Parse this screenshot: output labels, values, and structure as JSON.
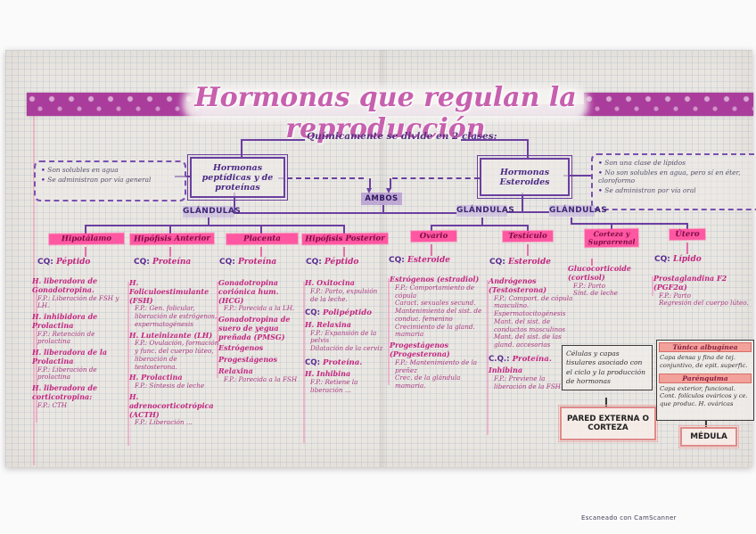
{
  "palette": {
    "ink_purple": "#6b3fa0",
    "ink_pink": "#c2267f",
    "highlight_pink": "#ff57a1",
    "highlight_lavender": "#b9a3e3",
    "tape_magenta": "#aa3d9c"
  },
  "title": "Hormonas que regulan la reproducción",
  "intro": "Químicamente se divide en 2 clases:",
  "class_left": {
    "label": "Hormonas peptídicas y de proteínas",
    "notes": [
      {
        "c": "note",
        "s": "Son solubles en agua"
      },
      {
        "c": "note",
        "s": "Se administran por vía general"
      }
    ]
  },
  "class_right": {
    "label": "Hormonas Esteroides",
    "notes": [
      {
        "c": "note",
        "s": "Son una clase de lípidos"
      },
      {
        "c": "note",
        "s": "No son solubles en agua, pero sí en éter, cloroformo"
      },
      {
        "c": "note",
        "s": "Se administran por vía oral"
      }
    ]
  },
  "ambos": "AMBOS",
  "glandulas": [
    "GLÁNDULAS",
    "GLÁNDULAS",
    "GLÁNDULAS"
  ],
  "columns": [
    {
      "name": "Hipotálamo",
      "cq_label": "CQ:",
      "cq": "Péptido",
      "lines": [
        {
          "c": "h",
          "s": "H. liberadora de Gonadotropina."
        },
        {
          "c": "fp",
          "s": "F.P.: Liberación de FSH y LH."
        },
        {
          "c": "h",
          "s": "H. inhibidora de Prolactina"
        },
        {
          "c": "fp",
          "s": "F.P.: Retención de prolactina"
        },
        {
          "c": "h",
          "s": "H. liberadora de la Prolactina"
        },
        {
          "c": "fp",
          "s": "F.P.: Liberación de prolactina"
        },
        {
          "c": "h",
          "s": "H. liberadora de corticotropina:"
        },
        {
          "c": "fp",
          "s": "F.P.: CTH"
        }
      ]
    },
    {
      "name": "Hipófisis Anterior",
      "cq_label": "CQ:",
      "cq": "Proteína",
      "lines": [
        {
          "c": "h",
          "s": "H. Foliculoestimulante (FSH)"
        },
        {
          "c": "fp",
          "s": "F.P.: Gen. folicular, liberación de estrógenos, espermatogénesis"
        },
        {
          "c": "h",
          "s": "H. Luteinizante (LH)"
        },
        {
          "c": "fp",
          "s": "F.P.: Ovulación, formación y func. del cuerpo lúteo, liberación de testosterona."
        },
        {
          "c": "h",
          "s": "H. Prolactina"
        },
        {
          "c": "fp",
          "s": "F.P.: Síntesis de leche"
        },
        {
          "c": "h",
          "s": "H. adrenocorticotrópica (ACTH)"
        },
        {
          "c": "fp",
          "s": "F.P.: Liberación …"
        }
      ]
    },
    {
      "name": "Placenta",
      "cq_label": "CQ:",
      "cq": "Proteína",
      "lines": [
        {
          "c": "h",
          "s": "Gonadotropina coriónica hum. (HCG)"
        },
        {
          "c": "fp",
          "s": "F.P.: Parecida a la LH."
        },
        {
          "c": "h",
          "s": "Gonadotropina de suero de yegua preñada (PMSG)"
        },
        {
          "c": "h",
          "s": "Estrógenos"
        },
        {
          "c": "h",
          "s": "Progestágenos"
        },
        {
          "c": "h",
          "s": "Relaxina"
        },
        {
          "c": "fp",
          "s": "F.P.: Parecida a la FSH"
        }
      ]
    },
    {
      "name": "Hipófisis Posterior",
      "cq_label": "CQ:",
      "cq": "Péptido",
      "lines": [
        {
          "c": "h",
          "s": "H. Oxitocina"
        },
        {
          "c": "fp",
          "s": "F.P.: Parto, expulsión de la leche."
        },
        {
          "c": "cq",
          "p": "CQ:",
          "s": "Polipéptido"
        },
        {
          "c": "h",
          "s": "H. Relaxina"
        },
        {
          "c": "fp",
          "s": "F.P.: Expansión de la pelvis"
        },
        {
          "c": "fp",
          "s": "Dilatación de la cerviz"
        },
        {
          "c": "cq",
          "p": "CQ:",
          "s": "Proteína."
        },
        {
          "c": "h",
          "s": "H. Inhibina"
        },
        {
          "c": "fp",
          "s": "F.P.: Retiene la liberación …"
        }
      ]
    },
    {
      "name": "Ovario",
      "cq_label": "CQ:",
      "cq": "Esteroide",
      "lines": [
        {
          "c": "h",
          "s": "Estrógenos (estradiol)"
        },
        {
          "c": "fp",
          "s": "F.P.: Comportamiento de cópula"
        },
        {
          "c": "fp",
          "s": "Caract. sexuales secund."
        },
        {
          "c": "fp",
          "s": "Mantenimiento del sist. de conduc. femenino"
        },
        {
          "c": "fp",
          "s": "Crecimiento de la gland. mamaria"
        },
        {
          "c": "h",
          "s": "Progestágenos (Progesterona)"
        },
        {
          "c": "fp",
          "s": "F.P.: Mantenimiento de la preñez"
        },
        {
          "c": "fp",
          "s": "Crec. de la glándula mamaria."
        }
      ]
    },
    {
      "name": "Testículo",
      "cq_label": "CQ:",
      "cq": "Esteroide",
      "lines": [
        {
          "c": "h",
          "s": "Andrógenos (Testosterona)"
        },
        {
          "c": "fp",
          "s": "F.P.: Comport. de cópula masculino."
        },
        {
          "c": "fp",
          "s": "Espermatocitogénesis"
        },
        {
          "c": "fp",
          "s": "Mant. del sist. de conductos masculinos"
        },
        {
          "c": "fp",
          "s": "Mant. del sist. de las gland. accesorias"
        },
        {
          "c": "cq",
          "p": "C.Q.:",
          "s": "Proteína."
        },
        {
          "c": "h",
          "s": "Inhibina"
        },
        {
          "c": "fp",
          "s": "F.P.: Previene la liberación de la FSH"
        }
      ]
    },
    {
      "name": "Corteza y Suprarrenal",
      "cq_label": "",
      "cq": "",
      "lines": [
        {
          "c": "h",
          "s": "Glucocorticoide (cortisol)"
        },
        {
          "c": "fp",
          "s": "F.P.: Parto"
        },
        {
          "c": "fp",
          "s": "Sínt. de leche"
        }
      ]
    },
    {
      "name": "Útero",
      "cq_label": "CQ:",
      "cq": "Lípido",
      "lines": [
        {
          "c": "h",
          "s": "Prostaglandina F2 (PGF2α)"
        },
        {
          "c": "fp",
          "s": "F.P.: Parto"
        },
        {
          "c": "fp",
          "s": "Regresión del cuerpo lúteo."
        }
      ]
    }
  ],
  "ovary_wall": {
    "description": "Células y capas tisulares asociado con el ciclo y la producción de hormonas",
    "label": "PARED EXTERNA O CORTEZA"
  },
  "ovary_layers": {
    "h1": "Túnica albugínea",
    "t1": "Capa densa y fina de tej. conjuntivo, de epit. superfic.",
    "h2": "Parénquima",
    "t2": "Capa exterior, funcional. Cont. folículos ováricos y ce. que produc. H. ováricas",
    "label": "MÉDULA"
  },
  "watermark": "Escaneado con CamScanner"
}
